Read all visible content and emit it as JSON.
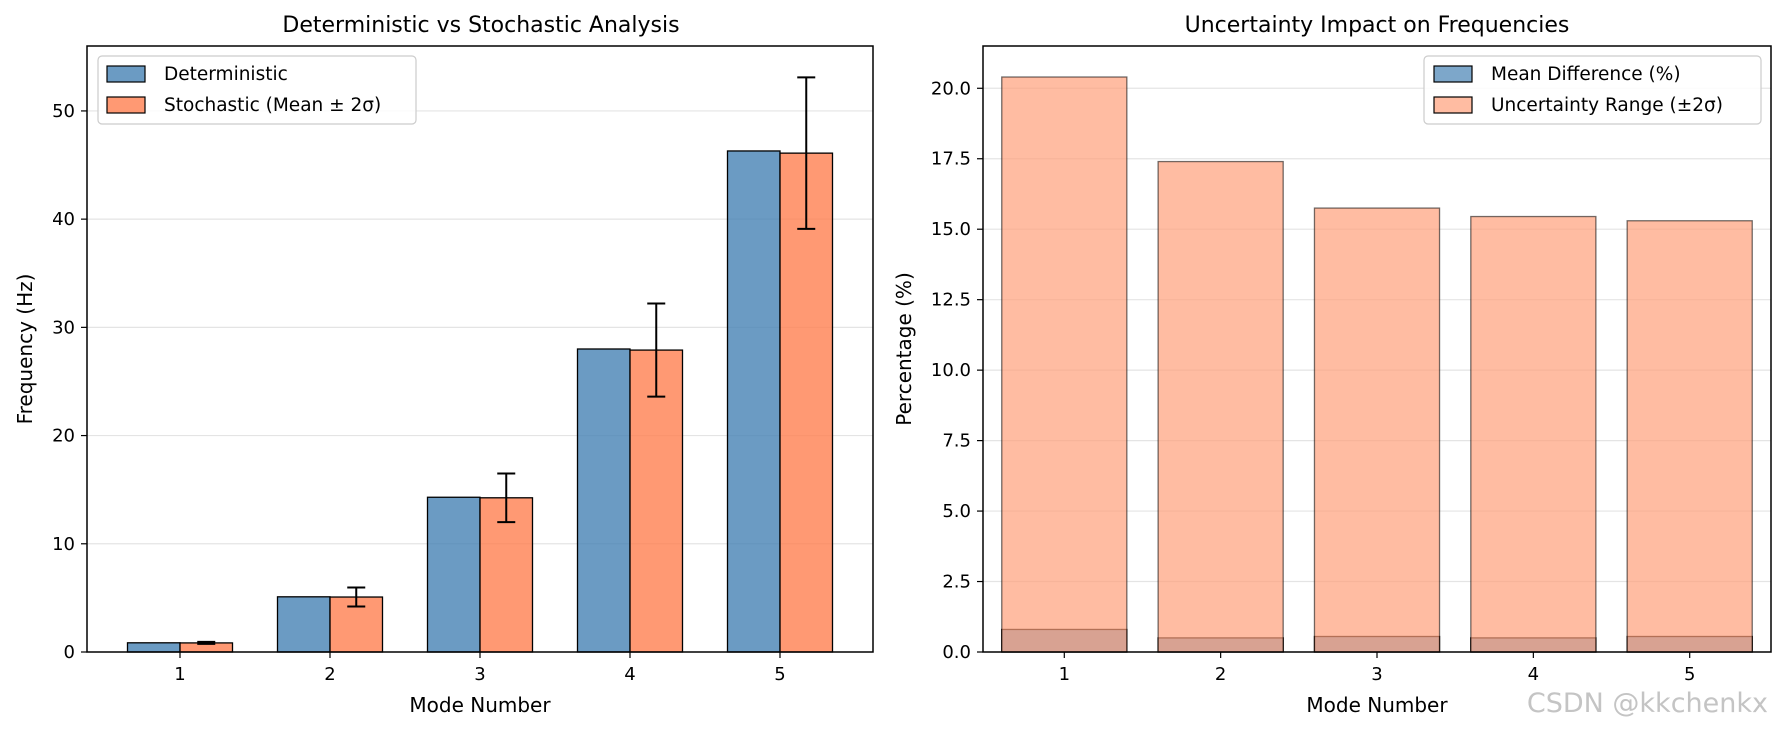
{
  "watermark": "CSDN @kkchenkx",
  "chart_data": [
    {
      "type": "bar",
      "title": "Deterministic vs Stochastic Analysis",
      "xlabel": "Mode Number",
      "ylabel": "Frequency (Hz)",
      "categories": [
        "1",
        "2",
        "3",
        "4",
        "5"
      ],
      "ylim": [
        0,
        56
      ],
      "yticks": [
        0,
        10,
        20,
        30,
        40,
        50
      ],
      "grid": "y",
      "legend_position": "top-left",
      "series": [
        {
          "name": "Deterministic",
          "values": [
            0.85,
            5.1,
            14.3,
            28.0,
            46.3
          ],
          "color": "#4682b4"
        },
        {
          "name": "Stochastic (Mean ± 2σ)",
          "values": [
            0.84,
            5.08,
            14.25,
            27.9,
            46.1
          ],
          "error_2sigma": [
            0.09,
            0.88,
            2.25,
            4.3,
            7.0
          ],
          "color": "#ff7f50"
        }
      ]
    },
    {
      "type": "bar",
      "title": "Uncertainty Impact on Frequencies",
      "xlabel": "Mode Number",
      "ylabel": "Percentage (%)",
      "categories": [
        "1",
        "2",
        "3",
        "4",
        "5"
      ],
      "ylim": [
        0,
        21.5
      ],
      "yticks": [
        0.0,
        2.5,
        5.0,
        7.5,
        10.0,
        12.5,
        15.0,
        17.5,
        20.0
      ],
      "grid": "y",
      "legend_position": "top-right",
      "series": [
        {
          "name": "Mean Difference (%)",
          "values": [
            0.8,
            0.5,
            0.55,
            0.5,
            0.55
          ],
          "color": "#4682b4"
        },
        {
          "name": "Uncertainty Range (±2σ)",
          "values": [
            20.4,
            17.4,
            15.75,
            15.45,
            15.3
          ],
          "color": "#ffa07a"
        }
      ]
    }
  ]
}
